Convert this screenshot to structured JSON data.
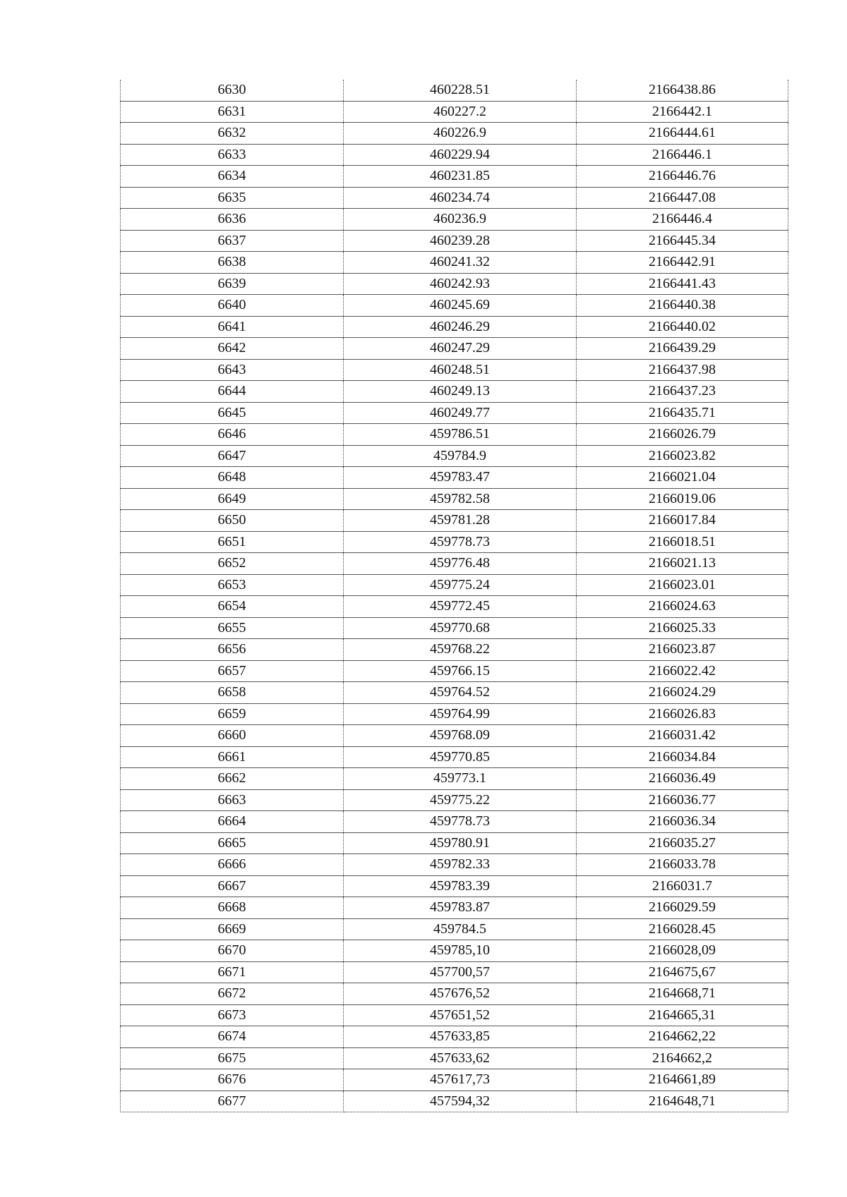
{
  "table": {
    "rows": [
      [
        "6630",
        "460228.51",
        "2166438.86"
      ],
      [
        "6631",
        "460227.2",
        "2166442.1"
      ],
      [
        "6632",
        "460226.9",
        "2166444.61"
      ],
      [
        "6633",
        "460229.94",
        "2166446.1"
      ],
      [
        "6634",
        "460231.85",
        "2166446.76"
      ],
      [
        "6635",
        "460234.74",
        "2166447.08"
      ],
      [
        "6636",
        "460236.9",
        "2166446.4"
      ],
      [
        "6637",
        "460239.28",
        "2166445.34"
      ],
      [
        "6638",
        "460241.32",
        "2166442.91"
      ],
      [
        "6639",
        "460242.93",
        "2166441.43"
      ],
      [
        "6640",
        "460245.69",
        "2166440.38"
      ],
      [
        "6641",
        "460246.29",
        "2166440.02"
      ],
      [
        "6642",
        "460247.29",
        "2166439.29"
      ],
      [
        "6643",
        "460248.51",
        "2166437.98"
      ],
      [
        "6644",
        "460249.13",
        "2166437.23"
      ],
      [
        "6645",
        "460249.77",
        "2166435.71"
      ],
      [
        "6646",
        "459786.51",
        "2166026.79"
      ],
      [
        "6647",
        "459784.9",
        "2166023.82"
      ],
      [
        "6648",
        "459783.47",
        "2166021.04"
      ],
      [
        "6649",
        "459782.58",
        "2166019.06"
      ],
      [
        "6650",
        "459781.28",
        "2166017.84"
      ],
      [
        "6651",
        "459778.73",
        "2166018.51"
      ],
      [
        "6652",
        "459776.48",
        "2166021.13"
      ],
      [
        "6653",
        "459775.24",
        "2166023.01"
      ],
      [
        "6654",
        "459772.45",
        "2166024.63"
      ],
      [
        "6655",
        "459770.68",
        "2166025.33"
      ],
      [
        "6656",
        "459768.22",
        "2166023.87"
      ],
      [
        "6657",
        "459766.15",
        "2166022.42"
      ],
      [
        "6658",
        "459764.52",
        "2166024.29"
      ],
      [
        "6659",
        "459764.99",
        "2166026.83"
      ],
      [
        "6660",
        "459768.09",
        "2166031.42"
      ],
      [
        "6661",
        "459770.85",
        "2166034.84"
      ],
      [
        "6662",
        "459773.1",
        "2166036.49"
      ],
      [
        "6663",
        "459775.22",
        "2166036.77"
      ],
      [
        "6664",
        "459778.73",
        "2166036.34"
      ],
      [
        "6665",
        "459780.91",
        "2166035.27"
      ],
      [
        "6666",
        "459782.33",
        "2166033.78"
      ],
      [
        "6667",
        "459783.39",
        "2166031.7"
      ],
      [
        "6668",
        "459783.87",
        "2166029.59"
      ],
      [
        "6669",
        "459784.5",
        "2166028.45"
      ],
      [
        "6670",
        "459785,10",
        "2166028,09"
      ],
      [
        "6671",
        "457700,57",
        "2164675,67"
      ],
      [
        "6672",
        "457676,52",
        "2164668,71"
      ],
      [
        "6673",
        "457651,52",
        "2164665,31"
      ],
      [
        "6674",
        "457633,85",
        "2164662,22"
      ],
      [
        "6675",
        "457633,62",
        "2164662,2"
      ],
      [
        "6676",
        "457617,73",
        "2164661,89"
      ],
      [
        "6677",
        "457594,32",
        "2164648,71"
      ]
    ]
  }
}
